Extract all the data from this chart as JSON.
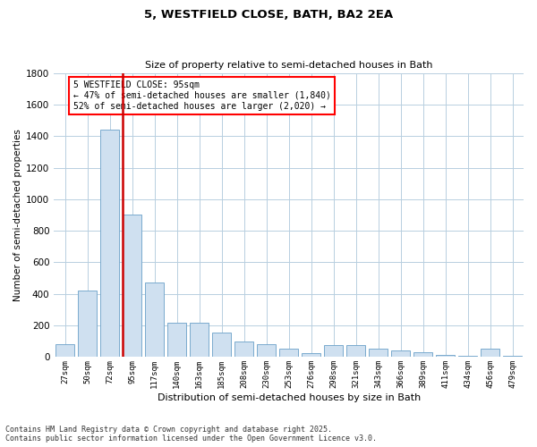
{
  "title": "5, WESTFIELD CLOSE, BATH, BA2 2EA",
  "subtitle": "Size of property relative to semi-detached houses in Bath",
  "xlabel": "Distribution of semi-detached houses by size in Bath",
  "ylabel": "Number of semi-detached properties",
  "property_label": "5 WESTFIELD CLOSE: 95sqm",
  "pct_smaller": "47% of semi-detached houses are smaller (1,840)",
  "pct_larger": "52% of semi-detached houses are larger (2,020)",
  "property_size_index": 3,
  "categories": [
    "27sqm",
    "50sqm",
    "72sqm",
    "95sqm",
    "117sqm",
    "140sqm",
    "163sqm",
    "185sqm",
    "208sqm",
    "230sqm",
    "253sqm",
    "276sqm",
    "298sqm",
    "321sqm",
    "343sqm",
    "366sqm",
    "389sqm",
    "411sqm",
    "434sqm",
    "456sqm",
    "479sqm"
  ],
  "values": [
    80,
    420,
    1440,
    900,
    470,
    220,
    215,
    155,
    100,
    80,
    55,
    25,
    75,
    75,
    55,
    40,
    30,
    15,
    10,
    55,
    10
  ],
  "bar_color": "#cfe0f0",
  "bar_edge_color": "#7aaace",
  "vline_color": "#cc0000",
  "background_color": "#ffffff",
  "grid_color": "#b8cfe0",
  "ylim": [
    0,
    1800
  ],
  "yticks": [
    0,
    200,
    400,
    600,
    800,
    1000,
    1200,
    1400,
    1600,
    1800
  ],
  "footnote1": "Contains HM Land Registry data © Crown copyright and database right 2025.",
  "footnote2": "Contains public sector information licensed under the Open Government Licence v3.0."
}
